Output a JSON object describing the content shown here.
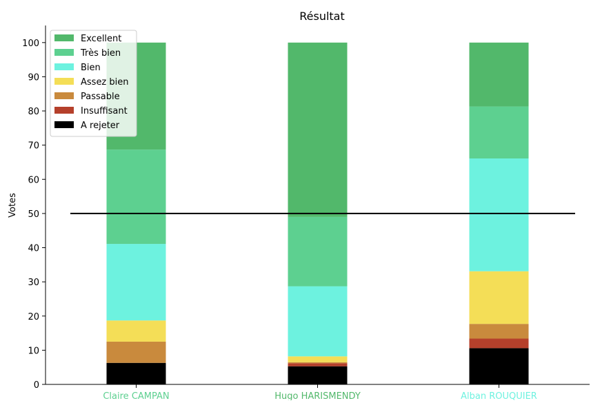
{
  "chart_data": {
    "type": "bar",
    "stacked": true,
    "title": "Résultat",
    "xlabel": "",
    "ylabel": "Votes",
    "ylim": [
      0,
      105
    ],
    "yticks": [
      0,
      10,
      20,
      30,
      40,
      50,
      60,
      70,
      80,
      90,
      100
    ],
    "grid": false,
    "legend_position": "top-left",
    "reference_line": {
      "y": 50,
      "color": "#000000"
    },
    "categories": [
      "Claire CAMPAN",
      "Hugo HARISMENDY",
      "Alban ROUQUIER"
    ],
    "category_label_colors": [
      "#5dd090",
      "#52b86b",
      "#6df2df"
    ],
    "series": [
      {
        "name": "A rejeter",
        "color": "#000000",
        "values": [
          6.3,
          5.3,
          10.6
        ]
      },
      {
        "name": "Insuffisant",
        "color": "#b5402b",
        "values": [
          0.0,
          0.9,
          2.8
        ]
      },
      {
        "name": "Passable",
        "color": "#c98a3d",
        "values": [
          6.2,
          0.3,
          4.3
        ]
      },
      {
        "name": "Assez bien",
        "color": "#f4de57",
        "values": [
          6.2,
          1.7,
          15.4
        ]
      },
      {
        "name": "Bien",
        "color": "#6df2df",
        "values": [
          22.4,
          20.5,
          33.0
        ]
      },
      {
        "name": "Très bien",
        "color": "#5dd090",
        "values": [
          27.6,
          20.3,
          15.2
        ]
      },
      {
        "name": "Excellent",
        "color": "#52b86b",
        "values": [
          31.3,
          51.0,
          18.7
        ]
      }
    ],
    "legend_order": [
      "Excellent",
      "Très bien",
      "Bien",
      "Assez bien",
      "Passable",
      "Insuffisant",
      "A rejeter"
    ]
  }
}
